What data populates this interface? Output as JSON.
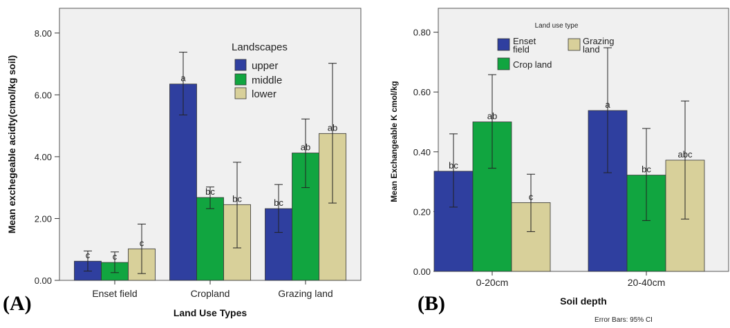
{
  "colors": {
    "upper": "#2f3f9f",
    "middle": "#11a540",
    "lower": "#d8d09a",
    "plot_bg": "#f0f0f0",
    "frame": "#555555"
  },
  "chart_data": [
    {
      "panel_label": "(A)",
      "type": "bar",
      "xlabel": "Land Use Types",
      "ylabel": "Mean exchegeable acidty(cmol/kg soil)",
      "ylim": [
        0,
        8.8
      ],
      "yticks": [
        0,
        2,
        4,
        6,
        8
      ],
      "ytick_labels": [
        "0.00",
        "2.00",
        "4.00",
        "6.00",
        "8.00"
      ],
      "categories": [
        "Enset field",
        "Cropland",
        "Grazing land"
      ],
      "legend": {
        "title": "Landscapes",
        "placement": "top-right"
      },
      "series": [
        {
          "name": "upper",
          "color_key": "upper",
          "values": [
            0.62,
            6.35,
            2.32
          ],
          "ci_low": [
            0.3,
            5.35,
            1.55
          ],
          "ci_high": [
            0.95,
            7.38,
            3.1
          ],
          "labels": [
            "c",
            "a",
            "bc"
          ]
        },
        {
          "name": "middle",
          "color_key": "middle",
          "values": [
            0.58,
            2.68,
            4.12
          ],
          "ci_low": [
            0.25,
            2.32,
            3.0
          ],
          "ci_high": [
            0.92,
            3.02,
            5.22
          ],
          "labels": [
            "c",
            "bc",
            "ab"
          ]
        },
        {
          "name": "lower",
          "color_key": "lower",
          "values": [
            1.02,
            2.45,
            4.75
          ],
          "ci_low": [
            0.22,
            1.05,
            2.5
          ],
          "ci_high": [
            1.82,
            3.82,
            7.02
          ],
          "labels": [
            "c",
            "bc",
            "ab"
          ]
        }
      ]
    },
    {
      "panel_label": "(B)",
      "type": "bar",
      "xlabel": "Soil depth",
      "ylabel": "Mean Exchangeable K cmol/kg",
      "ylim": [
        0,
        0.88
      ],
      "yticks": [
        0,
        0.2,
        0.4,
        0.6,
        0.8
      ],
      "ytick_labels": [
        "0.00",
        "0.20",
        "0.40",
        "0.60",
        "0.80"
      ],
      "categories": [
        "0-20cm",
        "20-40cm"
      ],
      "legend": {
        "title": "Land use type",
        "placement": "top-left"
      },
      "footnote": "Error Bars: 95% CI",
      "series": [
        {
          "name": "Enset field",
          "color_key": "upper",
          "values": [
            0.335,
            0.538
          ],
          "ci_low": [
            0.215,
            0.33
          ],
          "ci_high": [
            0.46,
            0.748
          ],
          "labels": [
            "bc",
            "a"
          ]
        },
        {
          "name": "Crop land",
          "color_key": "middle",
          "values": [
            0.5,
            0.322
          ],
          "ci_low": [
            0.345,
            0.17
          ],
          "ci_high": [
            0.658,
            0.478
          ],
          "labels": [
            "ab",
            "bc"
          ]
        },
        {
          "name": "Grazing land",
          "color_key": "lower",
          "values": [
            0.23,
            0.372
          ],
          "ci_low": [
            0.133,
            0.175
          ],
          "ci_high": [
            0.325,
            0.57
          ],
          "labels": [
            "c",
            "abc"
          ]
        }
      ]
    }
  ]
}
